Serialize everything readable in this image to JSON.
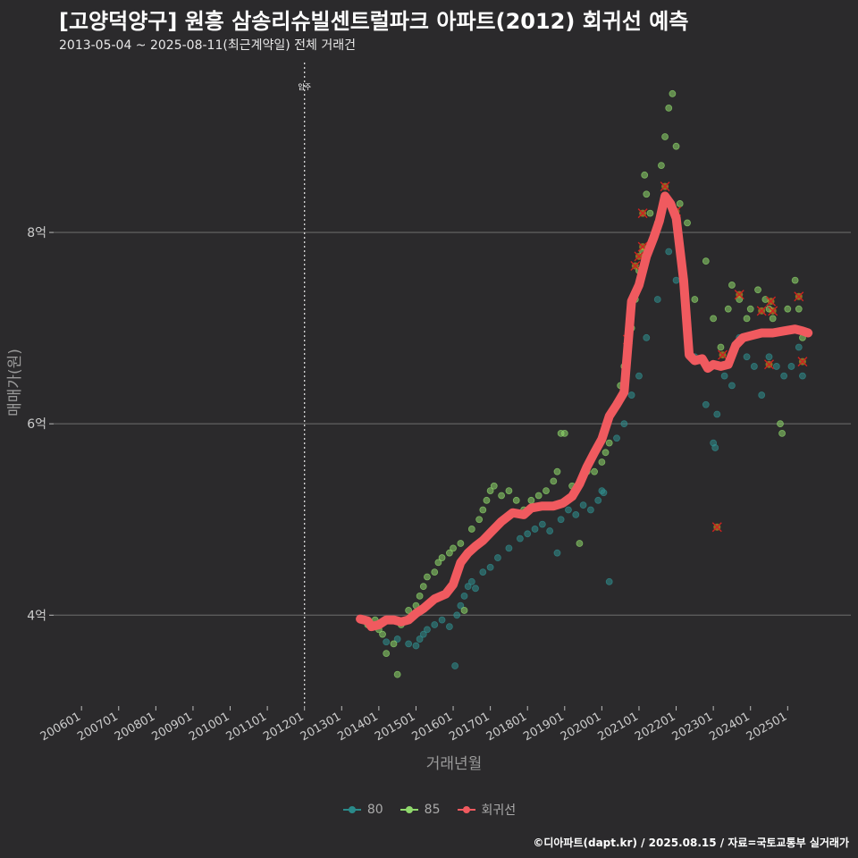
{
  "chart_data": {
    "type": "scatter",
    "title": "[고양덕양구] 원흥 삼송리슈빌센트럴파크 아파트(2012) 회귀선 예측",
    "subtitle": "2013-05-04 ~ 2025-08-11(최근계약일) 전체 거래건",
    "xlabel": "거래년월",
    "ylabel": "매매가(원)",
    "xlim": [
      2005.25,
      2026.7
    ],
    "ylim": [
      3.05,
      9.85
    ],
    "x_ticks": [
      {
        "label": "200601",
        "value": 2006.0
      },
      {
        "label": "200701",
        "value": 2007.0
      },
      {
        "label": "200801",
        "value": 2008.0
      },
      {
        "label": "200901",
        "value": 2009.0
      },
      {
        "label": "201001",
        "value": 2010.0
      },
      {
        "label": "201101",
        "value": 2011.0
      },
      {
        "label": "201201",
        "value": 2012.0
      },
      {
        "label": "201301",
        "value": 2013.0
      },
      {
        "label": "201401",
        "value": 2014.0
      },
      {
        "label": "201501",
        "value": 2015.0
      },
      {
        "label": "201601",
        "value": 2016.0
      },
      {
        "label": "201701",
        "value": 2017.0
      },
      {
        "label": "201801",
        "value": 2018.0
      },
      {
        "label": "201901",
        "value": 2019.0
      },
      {
        "label": "202001",
        "value": 2020.0
      },
      {
        "label": "202101",
        "value": 2021.0
      },
      {
        "label": "202201",
        "value": 2022.0
      },
      {
        "label": "202301",
        "value": 2023.0
      },
      {
        "label": "202401",
        "value": 2024.0
      },
      {
        "label": "202501",
        "value": 2025.0
      }
    ],
    "y_ticks": [
      {
        "label": "4억",
        "value": 4
      },
      {
        "label": "6억",
        "value": 6
      },
      {
        "label": "8억",
        "value": 8
      }
    ],
    "vline": {
      "x": 2012.0,
      "label": "입주"
    },
    "legend": {
      "position": "bottom",
      "items": [
        {
          "label": "80",
          "color": "#2a8a8a"
        },
        {
          "label": "85",
          "color": "#8fd86c"
        },
        {
          "label": "회귀선",
          "color": "#f05a5f"
        }
      ]
    },
    "series": [
      {
        "name": "80",
        "color": "#2f8f90",
        "points": [
          [
            2014.2,
            3.72
          ],
          [
            2014.5,
            3.75
          ],
          [
            2014.8,
            3.7
          ],
          [
            2015.0,
            3.68
          ],
          [
            2015.1,
            3.75
          ],
          [
            2015.2,
            3.8
          ],
          [
            2015.3,
            3.85
          ],
          [
            2015.5,
            3.9
          ],
          [
            2015.7,
            3.95
          ],
          [
            2015.9,
            3.88
          ],
          [
            2016.05,
            3.47
          ],
          [
            2016.1,
            4.0
          ],
          [
            2016.2,
            4.1
          ],
          [
            2016.3,
            4.2
          ],
          [
            2016.4,
            4.3
          ],
          [
            2016.5,
            4.35
          ],
          [
            2016.6,
            4.28
          ],
          [
            2016.8,
            4.45
          ],
          [
            2017.0,
            4.5
          ],
          [
            2017.2,
            4.6
          ],
          [
            2017.5,
            4.7
          ],
          [
            2017.8,
            4.8
          ],
          [
            2018.0,
            4.85
          ],
          [
            2018.2,
            4.9
          ],
          [
            2018.4,
            4.95
          ],
          [
            2018.6,
            4.88
          ],
          [
            2018.8,
            4.65
          ],
          [
            2018.9,
            5.0
          ],
          [
            2019.1,
            5.1
          ],
          [
            2019.3,
            5.05
          ],
          [
            2019.5,
            5.15
          ],
          [
            2019.7,
            5.1
          ],
          [
            2019.9,
            5.2
          ],
          [
            2020.0,
            5.3
          ],
          [
            2020.05,
            5.28
          ],
          [
            2020.2,
            4.35
          ],
          [
            2020.4,
            5.85
          ],
          [
            2020.6,
            6.0
          ],
          [
            2020.8,
            6.3
          ],
          [
            2021.0,
            6.5
          ],
          [
            2021.2,
            6.9
          ],
          [
            2021.5,
            7.3
          ],
          [
            2021.8,
            7.8
          ],
          [
            2022.0,
            7.5
          ],
          [
            2022.5,
            6.7
          ],
          [
            2022.8,
            6.2
          ],
          [
            2023.0,
            5.8
          ],
          [
            2023.05,
            5.75
          ],
          [
            2023.1,
            6.1
          ],
          [
            2023.3,
            6.5
          ],
          [
            2023.5,
            6.4
          ],
          [
            2023.7,
            6.9
          ],
          [
            2023.9,
            6.7
          ],
          [
            2024.1,
            6.6
          ],
          [
            2024.3,
            6.3
          ],
          [
            2024.5,
            6.7
          ],
          [
            2024.7,
            6.6
          ],
          [
            2024.9,
            6.5
          ],
          [
            2025.1,
            6.6
          ],
          [
            2025.3,
            6.8
          ],
          [
            2025.4,
            6.5
          ]
        ]
      },
      {
        "name": "85",
        "color": "#8fd86c",
        "points": [
          [
            2013.7,
            3.9
          ],
          [
            2013.9,
            3.95
          ],
          [
            2014.0,
            3.85
          ],
          [
            2014.1,
            3.8
          ],
          [
            2014.2,
            3.6
          ],
          [
            2014.4,
            3.7
          ],
          [
            2014.5,
            3.38
          ],
          [
            2014.6,
            3.9
          ],
          [
            2014.8,
            4.05
          ],
          [
            2015.0,
            4.1
          ],
          [
            2015.1,
            4.2
          ],
          [
            2015.2,
            4.3
          ],
          [
            2015.3,
            4.4
          ],
          [
            2015.5,
            4.45
          ],
          [
            2015.6,
            4.55
          ],
          [
            2015.7,
            4.6
          ],
          [
            2015.9,
            4.65
          ],
          [
            2016.0,
            4.7
          ],
          [
            2016.2,
            4.75
          ],
          [
            2016.3,
            4.05
          ],
          [
            2016.5,
            4.9
          ],
          [
            2016.7,
            5.0
          ],
          [
            2016.8,
            5.1
          ],
          [
            2016.9,
            5.2
          ],
          [
            2017.0,
            5.3
          ],
          [
            2017.1,
            5.35
          ],
          [
            2017.3,
            5.25
          ],
          [
            2017.5,
            5.3
          ],
          [
            2017.7,
            5.2
          ],
          [
            2017.9,
            5.1
          ],
          [
            2018.1,
            5.2
          ],
          [
            2018.3,
            5.25
          ],
          [
            2018.5,
            5.3
          ],
          [
            2018.7,
            5.4
          ],
          [
            2018.8,
            5.5
          ],
          [
            2018.9,
            5.9
          ],
          [
            2019.0,
            5.9
          ],
          [
            2019.2,
            5.35
          ],
          [
            2019.4,
            4.75
          ],
          [
            2019.6,
            5.5
          ],
          [
            2019.8,
            5.5
          ],
          [
            2020.0,
            5.6
          ],
          [
            2020.1,
            5.7
          ],
          [
            2020.2,
            5.8
          ],
          [
            2020.4,
            6.2
          ],
          [
            2020.5,
            6.4
          ],
          [
            2020.6,
            6.6
          ],
          [
            2020.7,
            6.8
          ],
          [
            2020.8,
            7.0
          ],
          [
            2020.9,
            7.3
          ],
          [
            2021.0,
            7.6
          ],
          [
            2021.1,
            7.8
          ],
          [
            2021.15,
            8.6
          ],
          [
            2021.2,
            8.4
          ],
          [
            2021.3,
            8.2
          ],
          [
            2021.5,
            8.1
          ],
          [
            2021.6,
            8.7
          ],
          [
            2021.7,
            9.0
          ],
          [
            2021.8,
            9.3
          ],
          [
            2021.9,
            9.45
          ],
          [
            2022.0,
            8.9
          ],
          [
            2022.1,
            8.3
          ],
          [
            2022.3,
            8.1
          ],
          [
            2022.5,
            7.3
          ],
          [
            2022.8,
            7.7
          ],
          [
            2023.0,
            7.1
          ],
          [
            2023.2,
            6.8
          ],
          [
            2023.4,
            7.2
          ],
          [
            2023.5,
            7.45
          ],
          [
            2023.7,
            7.3
          ],
          [
            2023.9,
            7.1
          ],
          [
            2024.0,
            7.2
          ],
          [
            2024.2,
            7.4
          ],
          [
            2024.4,
            7.3
          ],
          [
            2024.5,
            7.2
          ],
          [
            2024.6,
            7.1
          ],
          [
            2024.8,
            6.0
          ],
          [
            2024.85,
            5.9
          ],
          [
            2025.0,
            7.2
          ],
          [
            2025.2,
            7.5
          ],
          [
            2025.3,
            7.2
          ],
          [
            2025.4,
            6.9
          ]
        ]
      }
    ],
    "outliers": [
      [
        2020.7,
        6.88
      ],
      [
        2020.9,
        7.65
      ],
      [
        2021.0,
        7.75
      ],
      [
        2021.1,
        8.2
      ],
      [
        2021.1,
        7.85
      ],
      [
        2021.7,
        8.48
      ],
      [
        2022.0,
        8.22
      ],
      [
        2023.1,
        4.92
      ],
      [
        2023.25,
        6.72
      ],
      [
        2023.7,
        7.35
      ],
      [
        2024.3,
        7.18
      ],
      [
        2024.5,
        6.62
      ],
      [
        2024.55,
        7.28
      ],
      [
        2024.6,
        7.18
      ],
      [
        2025.3,
        7.33
      ],
      [
        2025.4,
        6.65
      ]
    ],
    "regression": {
      "name": "회귀선",
      "color": "#f05a5f",
      "points": [
        [
          2013.5,
          3.96
        ],
        [
          2013.7,
          3.94
        ],
        [
          2013.8,
          3.88
        ],
        [
          2014.0,
          3.9
        ],
        [
          2014.2,
          3.95
        ],
        [
          2014.4,
          3.95
        ],
        [
          2014.6,
          3.93
        ],
        [
          2014.8,
          3.95
        ],
        [
          2015.0,
          4.02
        ],
        [
          2015.2,
          4.07
        ],
        [
          2015.5,
          4.17
        ],
        [
          2015.8,
          4.22
        ],
        [
          2016.0,
          4.32
        ],
        [
          2016.2,
          4.55
        ],
        [
          2016.4,
          4.65
        ],
        [
          2016.6,
          4.72
        ],
        [
          2016.8,
          4.78
        ],
        [
          2017.0,
          4.86
        ],
        [
          2017.3,
          4.98
        ],
        [
          2017.6,
          5.07
        ],
        [
          2017.9,
          5.05
        ],
        [
          2018.1,
          5.12
        ],
        [
          2018.4,
          5.14
        ],
        [
          2018.7,
          5.14
        ],
        [
          2018.95,
          5.17
        ],
        [
          2019.2,
          5.24
        ],
        [
          2019.4,
          5.37
        ],
        [
          2019.6,
          5.55
        ],
        [
          2019.8,
          5.7
        ],
        [
          2020.0,
          5.84
        ],
        [
          2020.2,
          6.08
        ],
        [
          2020.4,
          6.2
        ],
        [
          2020.6,
          6.33
        ],
        [
          2020.75,
          7.05
        ],
        [
          2020.8,
          7.28
        ],
        [
          2021.0,
          7.45
        ],
        [
          2021.2,
          7.75
        ],
        [
          2021.4,
          7.95
        ],
        [
          2021.55,
          8.12
        ],
        [
          2021.7,
          8.38
        ],
        [
          2021.85,
          8.3
        ],
        [
          2022.0,
          8.15
        ],
        [
          2022.2,
          7.5
        ],
        [
          2022.35,
          6.72
        ],
        [
          2022.5,
          6.66
        ],
        [
          2022.7,
          6.68
        ],
        [
          2022.85,
          6.58
        ],
        [
          2023.0,
          6.62
        ],
        [
          2023.2,
          6.6
        ],
        [
          2023.4,
          6.62
        ],
        [
          2023.6,
          6.82
        ],
        [
          2023.8,
          6.9
        ],
        [
          2024.0,
          6.92
        ],
        [
          2024.3,
          6.95
        ],
        [
          2024.6,
          6.95
        ],
        [
          2024.9,
          6.97
        ],
        [
          2025.2,
          6.99
        ],
        [
          2025.4,
          6.97
        ],
        [
          2025.55,
          6.95
        ]
      ]
    }
  },
  "footer": {
    "source": "©디아파트(dapt.kr) / 2025.08.15 / 자료=국토교통부 실거래가"
  }
}
